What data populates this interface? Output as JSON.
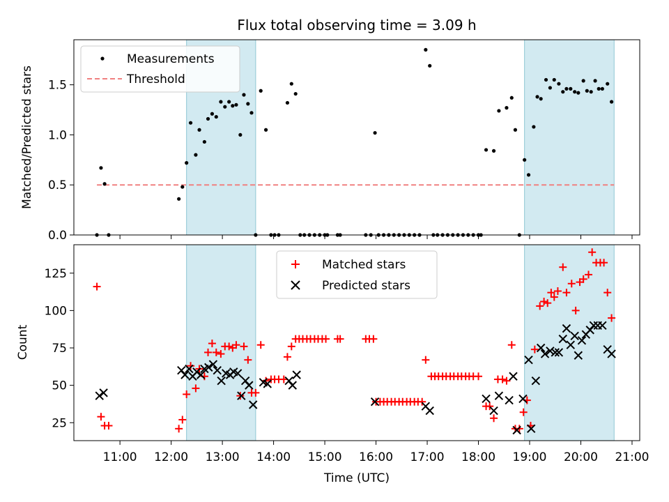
{
  "chart_data": [
    {
      "type": "scatter",
      "title": "Flux total observing time = 3.09 h",
      "ylabel": "Matched/Predicted stars",
      "xlabel": "",
      "x_unit": "hours UTC",
      "xlim": [
        10.1,
        21.15
      ],
      "ylim": [
        0,
        1.95
      ],
      "yticks": [
        0.0,
        0.5,
        1.0,
        1.5
      ],
      "ytick_labels": [
        "0.0",
        "0.5",
        "1.0",
        "1.5"
      ],
      "shaded_intervals": [
        [
          12.3,
          13.65
        ],
        [
          18.9,
          20.65
        ]
      ],
      "legend": {
        "position": "upper left",
        "entries": [
          "Measurements",
          "Threshold"
        ]
      },
      "threshold": {
        "name": "Threshold",
        "y": 0.5,
        "x_range": [
          10.55,
          20.65
        ],
        "color": "#f08080"
      },
      "series": [
        {
          "name": "Measurements",
          "marker": "dot",
          "color": "#000000",
          "points": [
            [
              10.55,
              0.0
            ],
            [
              10.63,
              0.67
            ],
            [
              10.7,
              0.51
            ],
            [
              10.78,
              0.0
            ],
            [
              12.15,
              0.36
            ],
            [
              12.22,
              0.48
            ],
            [
              12.3,
              0.72
            ],
            [
              12.38,
              1.12
            ],
            [
              12.48,
              0.8
            ],
            [
              12.55,
              1.05
            ],
            [
              12.65,
              0.93
            ],
            [
              12.72,
              1.16
            ],
            [
              12.8,
              1.21
            ],
            [
              12.88,
              1.18
            ],
            [
              12.97,
              1.33
            ],
            [
              13.05,
              1.28
            ],
            [
              13.13,
              1.33
            ],
            [
              13.2,
              1.29
            ],
            [
              13.27,
              1.3
            ],
            [
              13.35,
              1.0
            ],
            [
              13.42,
              1.4
            ],
            [
              13.5,
              1.31
            ],
            [
              13.57,
              1.22
            ],
            [
              13.65,
              0.0
            ],
            [
              13.75,
              1.44
            ],
            [
              13.85,
              1.05
            ],
            [
              13.95,
              0.0
            ],
            [
              14.02,
              0.0
            ],
            [
              14.1,
              0.0
            ],
            [
              14.27,
              1.32
            ],
            [
              14.35,
              1.51
            ],
            [
              14.43,
              1.41
            ],
            [
              14.52,
              0.0
            ],
            [
              14.6,
              0.0
            ],
            [
              14.7,
              0.0
            ],
            [
              14.8,
              0.0
            ],
            [
              14.9,
              0.0
            ],
            [
              15.0,
              0.0
            ],
            [
              15.05,
              0.0
            ],
            [
              15.25,
              0.0
            ],
            [
              15.3,
              0.0
            ],
            [
              15.8,
              0.0
            ],
            [
              15.9,
              0.0
            ],
            [
              15.98,
              1.02
            ],
            [
              16.05,
              0.0
            ],
            [
              16.15,
              0.0
            ],
            [
              16.25,
              0.0
            ],
            [
              16.35,
              0.0
            ],
            [
              16.45,
              0.0
            ],
            [
              16.55,
              0.0
            ],
            [
              16.65,
              0.0
            ],
            [
              16.75,
              0.0
            ],
            [
              16.85,
              0.0
            ],
            [
              16.97,
              1.85
            ],
            [
              17.05,
              1.69
            ],
            [
              17.12,
              0.0
            ],
            [
              17.2,
              0.0
            ],
            [
              17.3,
              0.0
            ],
            [
              17.4,
              0.0
            ],
            [
              17.5,
              0.0
            ],
            [
              17.6,
              0.0
            ],
            [
              17.7,
              0.0
            ],
            [
              17.8,
              0.0
            ],
            [
              17.9,
              0.0
            ],
            [
              18.0,
              0.0
            ],
            [
              18.05,
              0.0
            ],
            [
              18.15,
              0.85
            ],
            [
              18.3,
              0.84
            ],
            [
              18.4,
              1.24
            ],
            [
              18.55,
              1.27
            ],
            [
              18.65,
              1.37
            ],
            [
              18.72,
              1.05
            ],
            [
              18.8,
              0.0
            ],
            [
              18.9,
              0.75
            ],
            [
              18.98,
              0.6
            ],
            [
              19.08,
              1.08
            ],
            [
              19.15,
              1.38
            ],
            [
              19.22,
              1.36
            ],
            [
              19.32,
              1.55
            ],
            [
              19.4,
              1.47
            ],
            [
              19.48,
              1.55
            ],
            [
              19.57,
              1.51
            ],
            [
              19.65,
              1.43
            ],
            [
              19.72,
              1.46
            ],
            [
              19.8,
              1.46
            ],
            [
              19.88,
              1.43
            ],
            [
              19.95,
              1.42
            ],
            [
              20.05,
              1.54
            ],
            [
              20.12,
              1.44
            ],
            [
              20.2,
              1.43
            ],
            [
              20.28,
              1.54
            ],
            [
              20.35,
              1.46
            ],
            [
              20.42,
              1.46
            ],
            [
              20.52,
              1.51
            ],
            [
              20.6,
              1.33
            ]
          ]
        }
      ]
    },
    {
      "type": "scatter",
      "title": "",
      "xlabel": "Time (UTC)",
      "ylabel": "Count",
      "x_unit": "hours UTC",
      "xlim": [
        10.1,
        21.15
      ],
      "ylim": [
        13,
        144
      ],
      "xticks": [
        11,
        12,
        13,
        14,
        15,
        16,
        17,
        18,
        19,
        20,
        21
      ],
      "xtick_labels": [
        "11:00",
        "12:00",
        "13:00",
        "14:00",
        "15:00",
        "16:00",
        "17:00",
        "18:00",
        "19:00",
        "20:00",
        "21:00"
      ],
      "yticks": [
        25,
        50,
        75,
        100,
        125
      ],
      "ytick_labels": [
        "25",
        "50",
        "75",
        "100",
        "125"
      ],
      "shaded_intervals": [
        [
          12.3,
          13.65
        ],
        [
          18.9,
          20.65
        ]
      ],
      "legend": {
        "position": "upper center",
        "entries": [
          "Matched stars",
          "Predicted stars"
        ]
      },
      "series": [
        {
          "name": "Matched stars",
          "marker": "plus",
          "color": "#ff0000",
          "points": [
            [
              10.55,
              116
            ],
            [
              10.63,
              29
            ],
            [
              10.7,
              23
            ],
            [
              10.78,
              23
            ],
            [
              12.15,
              21
            ],
            [
              12.22,
              27
            ],
            [
              12.3,
              44
            ],
            [
              12.38,
              63
            ],
            [
              12.48,
              48
            ],
            [
              12.55,
              61
            ],
            [
              12.65,
              56
            ],
            [
              12.72,
              72
            ],
            [
              12.8,
              78
            ],
            [
              12.88,
              72
            ],
            [
              12.97,
              71
            ],
            [
              13.05,
              76
            ],
            [
              13.13,
              76
            ],
            [
              13.2,
              75
            ],
            [
              13.27,
              77
            ],
            [
              13.35,
              43
            ],
            [
              13.42,
              76
            ],
            [
              13.5,
              67
            ],
            [
              13.57,
              45
            ],
            [
              13.65,
              45
            ],
            [
              13.75,
              77
            ],
            [
              13.85,
              53
            ],
            [
              13.95,
              54
            ],
            [
              14.02,
              54
            ],
            [
              14.1,
              54
            ],
            [
              14.2,
              54
            ],
            [
              14.27,
              69
            ],
            [
              14.35,
              76
            ],
            [
              14.43,
              81
            ],
            [
              14.5,
              81
            ],
            [
              14.57,
              81
            ],
            [
              14.65,
              81
            ],
            [
              14.72,
              81
            ],
            [
              14.8,
              81
            ],
            [
              14.87,
              81
            ],
            [
              14.95,
              81
            ],
            [
              15.02,
              81
            ],
            [
              15.25,
              81
            ],
            [
              15.3,
              81
            ],
            [
              15.8,
              81
            ],
            [
              15.87,
              81
            ],
            [
              15.95,
              81
            ],
            [
              16.0,
              39
            ],
            [
              16.08,
              39
            ],
            [
              16.15,
              39
            ],
            [
              16.22,
              39
            ],
            [
              16.3,
              39
            ],
            [
              16.37,
              39
            ],
            [
              16.45,
              39
            ],
            [
              16.52,
              39
            ],
            [
              16.6,
              39
            ],
            [
              16.67,
              39
            ],
            [
              16.75,
              39
            ],
            [
              16.82,
              39
            ],
            [
              16.9,
              39
            ],
            [
              16.97,
              67
            ],
            [
              17.08,
              56
            ],
            [
              17.15,
              56
            ],
            [
              17.22,
              56
            ],
            [
              17.3,
              56
            ],
            [
              17.37,
              56
            ],
            [
              17.45,
              56
            ],
            [
              17.52,
              56
            ],
            [
              17.6,
              56
            ],
            [
              17.67,
              56
            ],
            [
              17.75,
              56
            ],
            [
              17.82,
              56
            ],
            [
              17.9,
              56
            ],
            [
              18.0,
              56
            ],
            [
              18.15,
              36
            ],
            [
              18.22,
              36
            ],
            [
              18.3,
              28
            ],
            [
              18.38,
              54
            ],
            [
              18.47,
              54
            ],
            [
              18.55,
              53
            ],
            [
              18.65,
              77
            ],
            [
              18.72,
              21
            ],
            [
              18.8,
              21
            ],
            [
              18.88,
              32
            ],
            [
              18.95,
              40
            ],
            [
              19.02,
              23
            ],
            [
              19.1,
              74
            ],
            [
              19.2,
              103
            ],
            [
              19.28,
              106
            ],
            [
              19.35,
              105
            ],
            [
              19.42,
              112
            ],
            [
              19.48,
              109
            ],
            [
              19.55,
              113
            ],
            [
              19.65,
              129
            ],
            [
              19.72,
              112
            ],
            [
              19.82,
              118
            ],
            [
              19.9,
              100
            ],
            [
              19.98,
              119
            ],
            [
              20.05,
              121
            ],
            [
              20.15,
              124
            ],
            [
              20.22,
              139
            ],
            [
              20.3,
              132
            ],
            [
              20.38,
              132
            ],
            [
              20.45,
              132
            ],
            [
              20.52,
              112
            ],
            [
              20.6,
              95
            ]
          ]
        },
        {
          "name": "Predicted stars",
          "marker": "x",
          "color": "#000000",
          "points": [
            [
              10.6,
              43
            ],
            [
              10.68,
              45
            ],
            [
              12.2,
              60
            ],
            [
              12.27,
              57
            ],
            [
              12.35,
              61
            ],
            [
              12.42,
              56
            ],
            [
              12.5,
              59
            ],
            [
              12.58,
              57
            ],
            [
              12.65,
              61
            ],
            [
              12.73,
              62
            ],
            [
              12.82,
              64
            ],
            [
              12.9,
              60
            ],
            [
              12.98,
              53
            ],
            [
              13.07,
              58
            ],
            [
              13.15,
              57
            ],
            [
              13.22,
              59
            ],
            [
              13.3,
              58
            ],
            [
              13.37,
              43
            ],
            [
              13.45,
              53
            ],
            [
              13.52,
              50
            ],
            [
              13.6,
              37
            ],
            [
              13.8,
              52
            ],
            [
              13.88,
              51
            ],
            [
              14.3,
              53
            ],
            [
              14.37,
              50
            ],
            [
              14.45,
              57
            ],
            [
              15.98,
              39
            ],
            [
              16.97,
              36
            ],
            [
              17.05,
              33
            ],
            [
              18.15,
              41
            ],
            [
              18.3,
              33
            ],
            [
              18.4,
              43
            ],
            [
              18.6,
              40
            ],
            [
              18.68,
              56
            ],
            [
              18.75,
              20
            ],
            [
              18.87,
              41
            ],
            [
              18.98,
              67
            ],
            [
              19.03,
              21
            ],
            [
              19.12,
              53
            ],
            [
              19.22,
              75
            ],
            [
              19.3,
              71
            ],
            [
              19.4,
              73
            ],
            [
              19.5,
              72
            ],
            [
              19.57,
              72
            ],
            [
              19.65,
              81
            ],
            [
              19.72,
              88
            ],
            [
              19.8,
              77
            ],
            [
              19.88,
              83
            ],
            [
              19.95,
              70
            ],
            [
              20.02,
              80
            ],
            [
              20.1,
              84
            ],
            [
              20.18,
              87
            ],
            [
              20.25,
              90
            ],
            [
              20.33,
              90
            ],
            [
              20.42,
              90
            ],
            [
              20.52,
              74
            ],
            [
              20.6,
              71
            ]
          ]
        }
      ]
    }
  ],
  "colors": {
    "shade": "#add8e6",
    "matched": "#ff0000",
    "predicted": "#000000",
    "threshold": "#f08080"
  }
}
